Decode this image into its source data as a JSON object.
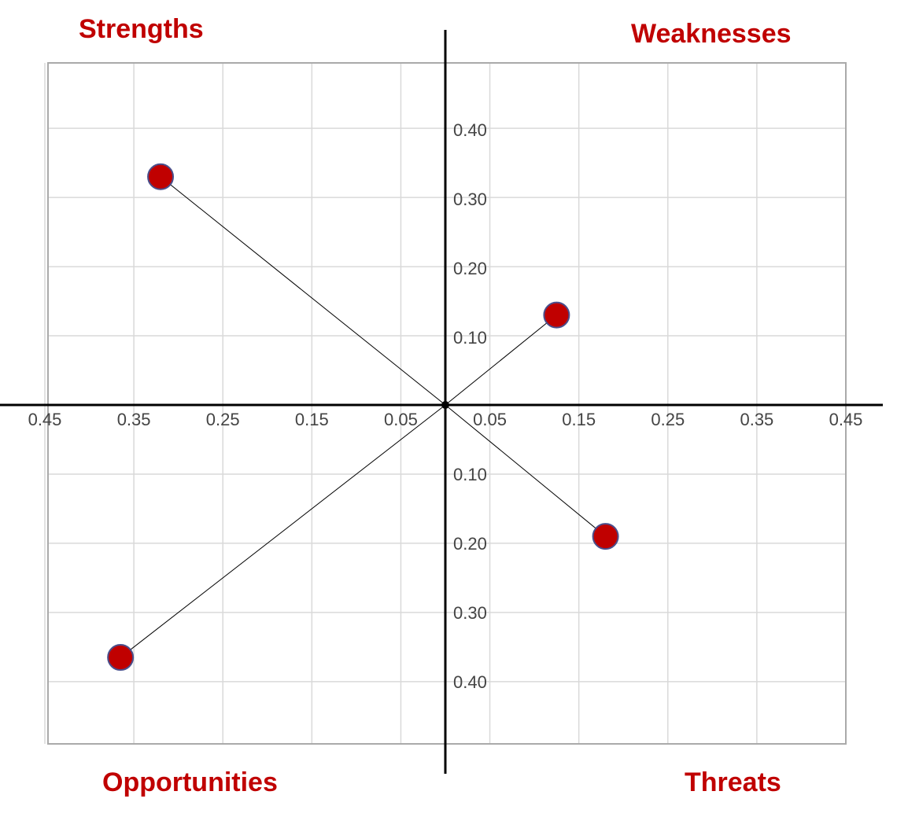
{
  "chart_data": {
    "type": "scatter",
    "title": "",
    "quadrant_labels": {
      "top_left": "Strengths",
      "top_right": "Weaknesses",
      "bottom_left": "Opportunities",
      "bottom_right": "Threats"
    },
    "x_tick_labels": [
      "0.45",
      "0.35",
      "0.25",
      "0.15",
      "0.05",
      "0.05",
      "0.15",
      "0.25",
      "0.35",
      "0.45"
    ],
    "y_tick_labels_up": [
      "0.40",
      "0.30",
      "0.20",
      "0.10"
    ],
    "y_tick_labels_down": [
      "0.10",
      "0.20",
      "0.30",
      "0.40"
    ],
    "xlim": [
      -0.45,
      0.45
    ],
    "ylim": [
      -0.49,
      0.49
    ],
    "grid": true,
    "points": [
      {
        "quadrant": "Strengths",
        "x": -0.32,
        "y": 0.33
      },
      {
        "quadrant": "Weaknesses",
        "x": 0.125,
        "y": 0.13
      },
      {
        "quadrant": "Opportunities",
        "x": -0.365,
        "y": -0.365
      },
      {
        "quadrant": "Threats",
        "x": 0.18,
        "y": -0.19
      }
    ],
    "colors": {
      "label": "#c00000",
      "point_fill": "#c00000",
      "point_stroke": "#4a4f8c",
      "grid": "#d9d9d9",
      "frame": "#aaaaaa",
      "axis": "#000000"
    }
  }
}
